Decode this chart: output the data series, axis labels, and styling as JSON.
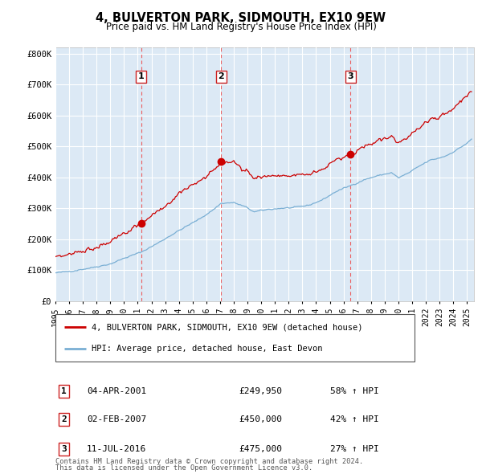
{
  "title": "4, BULVERTON PARK, SIDMOUTH, EX10 9EW",
  "subtitle": "Price paid vs. HM Land Registry's House Price Index (HPI)",
  "legend_label_red": "4, BULVERTON PARK, SIDMOUTH, EX10 9EW (detached house)",
  "legend_label_blue": "HPI: Average price, detached house, East Devon",
  "footer_line1": "Contains HM Land Registry data © Crown copyright and database right 2024.",
  "footer_line2": "This data is licensed under the Open Government Licence v3.0.",
  "transactions": [
    {
      "num": 1,
      "date": "04-APR-2001",
      "price": "£249,950",
      "pct": "58% ↑ HPI"
    },
    {
      "num": 2,
      "date": "02-FEB-2007",
      "price": "£450,000",
      "pct": "42% ↑ HPI"
    },
    {
      "num": 3,
      "date": "11-JUL-2016",
      "price": "£475,000",
      "pct": "27% ↑ HPI"
    }
  ],
  "sale_dates_decimal": [
    2001.25,
    2007.08,
    2016.52
  ],
  "sale_prices": [
    249950,
    450000,
    475000
  ],
  "ylim": [
    0,
    820000
  ],
  "yticks": [
    0,
    100000,
    200000,
    300000,
    400000,
    500000,
    600000,
    700000,
    800000
  ],
  "ytick_labels": [
    "£0",
    "£100K",
    "£200K",
    "£300K",
    "£400K",
    "£500K",
    "£600K",
    "£700K",
    "£800K"
  ],
  "xlim_start": 1995.0,
  "xlim_end": 2025.5,
  "bg_color": "#dce9f5",
  "grid_color": "#ffffff",
  "red_line_color": "#cc0000",
  "blue_line_color": "#7aafd4",
  "vline_color": "#ee4444",
  "dot_color": "#cc0000",
  "fig_bg": "#ffffff"
}
